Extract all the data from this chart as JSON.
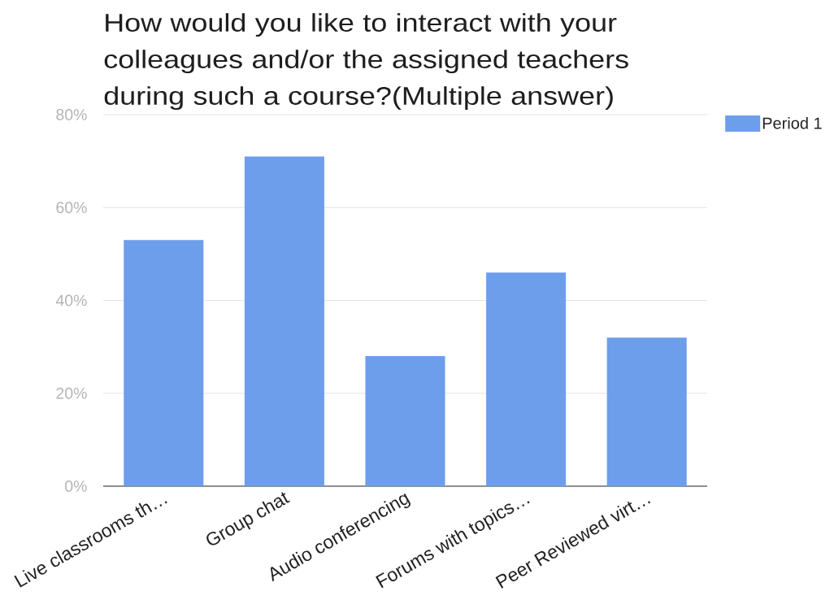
{
  "chart_data": {
    "type": "bar",
    "title": "How would you like to interact with your colleagues and/or the assigned teachers during such a course?(Multiple answer)",
    "categories": [
      "Live classrooms th…",
      "Group chat",
      "Audio conferencing",
      "Forums with topics…",
      "Peer Reviewed virt…"
    ],
    "series": [
      {
        "name": "Period 1",
        "color": "#6d9eeb",
        "values": [
          53,
          71,
          28,
          46,
          32
        ]
      }
    ],
    "ylim": [
      0,
      80
    ],
    "yticks": [
      {
        "value": 0,
        "label": "0%"
      },
      {
        "value": 20,
        "label": "20%"
      },
      {
        "value": 40,
        "label": "40%"
      },
      {
        "value": 60,
        "label": "60%"
      },
      {
        "value": 80,
        "label": "80%"
      }
    ],
    "grid": "y",
    "legend": "right"
  }
}
